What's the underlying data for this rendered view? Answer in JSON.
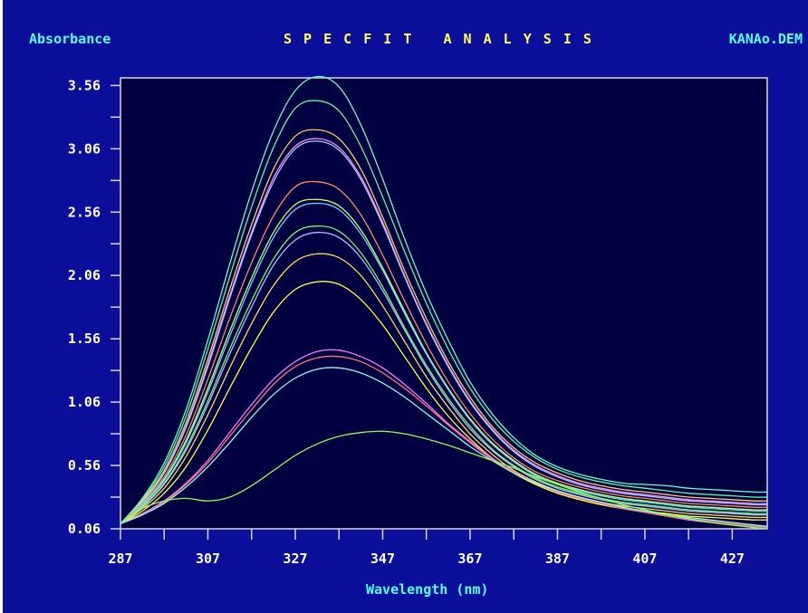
{
  "header": {
    "ylabel": "Absorbance",
    "title": "SPECFIT ANALYSIS",
    "filename": "KANAo.DEM"
  },
  "colors": {
    "background": "#0a0e99",
    "plot_background": "#000040",
    "axis": "#d8d8d8",
    "label_cyan": "#55ffff",
    "title_yellow": "#ffff55",
    "tick_text": "#ffffff"
  },
  "chart_data": {
    "type": "line",
    "title": "SPECFIT ANALYSIS",
    "xlabel": "Wavelength (nm)",
    "ylabel": "Absorbance",
    "xlim": [
      287,
      435
    ],
    "ylim": [
      0.06,
      3.62
    ],
    "x_ticks": [
      287,
      307,
      327,
      347,
      367,
      387,
      407,
      427
    ],
    "y_ticks": [
      "0.06",
      "0.56",
      "1.06",
      "1.56",
      "2.06",
      "2.56",
      "3.06",
      "3.56"
    ],
    "x_tick_values": [
      287,
      307,
      327,
      347,
      367,
      387,
      407,
      427
    ],
    "y_tick_values": [
      0.06,
      0.56,
      1.06,
      1.56,
      2.06,
      2.56,
      3.06,
      3.56
    ],
    "x": [
      287,
      292,
      297,
      302,
      307,
      312,
      317,
      322,
      327,
      332,
      337,
      342,
      347,
      352,
      357,
      362,
      367,
      372,
      377,
      382,
      387,
      392,
      397,
      402,
      407,
      412,
      417,
      422,
      427,
      432,
      435
    ],
    "series": [
      {
        "color": "#66ffcc",
        "values": [
          0.1,
          0.3,
          0.58,
          1.0,
          1.55,
          2.15,
          2.72,
          3.2,
          3.52,
          3.63,
          3.55,
          3.25,
          2.82,
          2.35,
          1.92,
          1.55,
          1.22,
          0.97,
          0.78,
          0.64,
          0.55,
          0.49,
          0.45,
          0.42,
          0.41,
          0.4,
          0.38,
          0.37,
          0.36,
          0.35,
          0.35
        ]
      },
      {
        "color": "#55ff99",
        "values": [
          0.1,
          0.29,
          0.55,
          0.95,
          1.48,
          2.05,
          2.6,
          3.07,
          3.38,
          3.44,
          3.36,
          3.08,
          2.68,
          2.25,
          1.84,
          1.48,
          1.17,
          0.93,
          0.75,
          0.62,
          0.53,
          0.47,
          0.43,
          0.4,
          0.38,
          0.36,
          0.34,
          0.33,
          0.32,
          0.31,
          0.31
        ]
      },
      {
        "color": "#ffcc66",
        "values": [
          0.1,
          0.28,
          0.52,
          0.9,
          1.4,
          1.95,
          2.46,
          2.9,
          3.16,
          3.21,
          3.14,
          2.9,
          2.52,
          2.1,
          1.72,
          1.38,
          1.1,
          0.87,
          0.7,
          0.58,
          0.5,
          0.44,
          0.4,
          0.37,
          0.35,
          0.33,
          0.31,
          0.3,
          0.29,
          0.28,
          0.28
        ]
      },
      {
        "color": "#ff88ff",
        "values": [
          0.1,
          0.27,
          0.5,
          0.87,
          1.36,
          1.9,
          2.4,
          2.83,
          3.08,
          3.14,
          3.07,
          2.84,
          2.48,
          2.06,
          1.68,
          1.35,
          1.07,
          0.85,
          0.68,
          0.56,
          0.48,
          0.42,
          0.38,
          0.35,
          0.33,
          0.31,
          0.29,
          0.28,
          0.27,
          0.26,
          0.26
        ]
      },
      {
        "color": "#aaccff",
        "values": [
          0.1,
          0.27,
          0.5,
          0.86,
          1.34,
          1.88,
          2.38,
          2.8,
          3.06,
          3.12,
          3.05,
          2.82,
          2.46,
          2.05,
          1.67,
          1.34,
          1.06,
          0.84,
          0.67,
          0.55,
          0.47,
          0.41,
          0.37,
          0.34,
          0.32,
          0.3,
          0.28,
          0.27,
          0.26,
          0.25,
          0.25
        ]
      },
      {
        "color": "#ff8866",
        "values": [
          0.1,
          0.26,
          0.47,
          0.8,
          1.24,
          1.72,
          2.16,
          2.53,
          2.76,
          2.8,
          2.74,
          2.54,
          2.22,
          1.86,
          1.52,
          1.22,
          0.97,
          0.77,
          0.62,
          0.51,
          0.44,
          0.39,
          0.35,
          0.32,
          0.3,
          0.28,
          0.26,
          0.25,
          0.24,
          0.23,
          0.23
        ]
      },
      {
        "color": "#ccff66",
        "values": [
          0.1,
          0.25,
          0.45,
          0.76,
          1.17,
          1.62,
          2.04,
          2.4,
          2.62,
          2.66,
          2.61,
          2.42,
          2.12,
          1.78,
          1.45,
          1.17,
          0.93,
          0.74,
          0.6,
          0.49,
          0.42,
          0.37,
          0.33,
          0.3,
          0.28,
          0.26,
          0.24,
          0.23,
          0.22,
          0.21,
          0.21
        ]
      },
      {
        "color": "#66ddff",
        "values": [
          0.1,
          0.25,
          0.44,
          0.74,
          1.14,
          1.58,
          2.0,
          2.36,
          2.58,
          2.63,
          2.58,
          2.39,
          2.1,
          1.76,
          1.44,
          1.16,
          0.92,
          0.73,
          0.59,
          0.48,
          0.41,
          0.36,
          0.32,
          0.29,
          0.27,
          0.25,
          0.23,
          0.22,
          0.21,
          0.2,
          0.2
        ]
      },
      {
        "color": "#66ff66",
        "values": [
          0.1,
          0.24,
          0.42,
          0.7,
          1.07,
          1.48,
          1.86,
          2.19,
          2.4,
          2.45,
          2.41,
          2.24,
          1.97,
          1.65,
          1.35,
          1.09,
          0.87,
          0.69,
          0.56,
          0.46,
          0.39,
          0.34,
          0.3,
          0.27,
          0.25,
          0.23,
          0.21,
          0.2,
          0.19,
          0.18,
          0.18
        ]
      },
      {
        "color": "#bbbbff",
        "values": [
          0.1,
          0.23,
          0.41,
          0.68,
          1.04,
          1.44,
          1.81,
          2.14,
          2.34,
          2.4,
          2.36,
          2.2,
          1.94,
          1.63,
          1.33,
          1.07,
          0.85,
          0.68,
          0.55,
          0.45,
          0.38,
          0.33,
          0.29,
          0.26,
          0.24,
          0.22,
          0.2,
          0.19,
          0.18,
          0.17,
          0.17
        ]
      },
      {
        "color": "#ffdd55",
        "values": [
          0.1,
          0.22,
          0.38,
          0.63,
          0.96,
          1.33,
          1.68,
          1.98,
          2.17,
          2.23,
          2.2,
          2.06,
          1.82,
          1.54,
          1.26,
          1.02,
          0.81,
          0.65,
          0.52,
          0.43,
          0.36,
          0.31,
          0.27,
          0.24,
          0.22,
          0.2,
          0.18,
          0.17,
          0.16,
          0.15,
          0.15
        ]
      },
      {
        "color": "#ffff44",
        "values": [
          0.1,
          0.2,
          0.34,
          0.55,
          0.84,
          1.17,
          1.49,
          1.77,
          1.95,
          2.01,
          1.99,
          1.87,
          1.67,
          1.42,
          1.17,
          0.95,
          0.77,
          0.62,
          0.5,
          0.41,
          0.34,
          0.29,
          0.25,
          0.22,
          0.2,
          0.18,
          0.16,
          0.15,
          0.14,
          0.13,
          0.13
        ]
      },
      {
        "color": "#ff77ff",
        "values": [
          0.1,
          0.18,
          0.28,
          0.42,
          0.6,
          0.82,
          1.04,
          1.24,
          1.38,
          1.46,
          1.47,
          1.42,
          1.33,
          1.2,
          1.05,
          0.89,
          0.75,
          0.62,
          0.51,
          0.42,
          0.35,
          0.3,
          0.26,
          0.22,
          0.19,
          0.16,
          0.13,
          0.11,
          0.09,
          0.07,
          0.06
        ]
      },
      {
        "color": "#ff7777",
        "values": [
          0.1,
          0.17,
          0.27,
          0.41,
          0.58,
          0.79,
          1.0,
          1.2,
          1.34,
          1.41,
          1.42,
          1.38,
          1.29,
          1.17,
          1.03,
          0.88,
          0.74,
          0.61,
          0.51,
          0.42,
          0.35,
          0.3,
          0.26,
          0.22,
          0.19,
          0.16,
          0.14,
          0.12,
          0.1,
          0.08,
          0.07
        ]
      },
      {
        "color": "#88ffee",
        "values": [
          0.1,
          0.17,
          0.26,
          0.39,
          0.55,
          0.74,
          0.94,
          1.12,
          1.25,
          1.32,
          1.33,
          1.29,
          1.21,
          1.1,
          0.97,
          0.84,
          0.71,
          0.6,
          0.5,
          0.42,
          0.36,
          0.31,
          0.27,
          0.23,
          0.2,
          0.17,
          0.15,
          0.13,
          0.11,
          0.09,
          0.08
        ]
      },
      {
        "color": "#88ff55",
        "values": [
          0.1,
          0.22,
          0.28,
          0.3,
          0.28,
          0.31,
          0.4,
          0.52,
          0.64,
          0.73,
          0.79,
          0.82,
          0.83,
          0.81,
          0.77,
          0.72,
          0.66,
          0.6,
          0.54,
          0.47,
          0.41,
          0.35,
          0.3,
          0.25,
          0.21,
          0.17,
          0.14,
          0.11,
          0.09,
          0.07,
          0.06
        ]
      }
    ]
  }
}
